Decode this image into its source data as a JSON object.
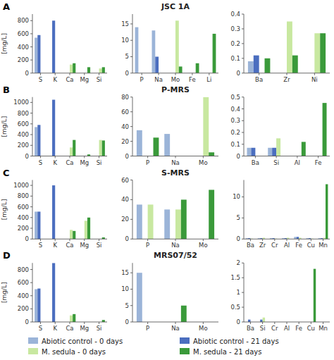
{
  "chart_data": [
    {
      "type": "bar",
      "annotations": [
        "A"
      ],
      "ylabel": "[mg/L]",
      "categories": [
        "S",
        "K",
        "Ca",
        "Mg",
        "Si"
      ],
      "ylim": [
        0,
        900
      ],
      "yticks": [
        0,
        200,
        400,
        600,
        800
      ],
      "grid": false,
      "legend": "bottom",
      "series": [
        {
          "name": "Abiotic control - 0 days",
          "color": "#9BB4D8",
          "values": [
            540,
            0,
            0,
            0,
            0
          ]
        },
        {
          "name": "Abiotic control - 21 days",
          "color": "#4B6EBF",
          "values": [
            580,
            800,
            0,
            0,
            0
          ]
        },
        {
          "name": "M. sedula - 0 days",
          "color": "#C8E8A0",
          "values": [
            0,
            0,
            130,
            0,
            70
          ]
        },
        {
          "name": "M. sedula - 21 days",
          "color": "#3A9A3A",
          "values": [
            0,
            0,
            150,
            90,
            90
          ]
        }
      ]
    },
    {
      "type": "bar",
      "title": "JSC 1A",
      "categories": [
        "P",
        "Na",
        "Mo",
        "Fe",
        "Li"
      ],
      "ylim": [
        0,
        18
      ],
      "yticks": [
        0,
        5,
        10,
        15
      ],
      "grid": false,
      "series": [
        {
          "color": "#9BB4D8",
          "values": [
            14,
            13,
            0,
            0,
            0
          ]
        },
        {
          "color": "#4B6EBF",
          "values": [
            0,
            5,
            0,
            0,
            0
          ]
        },
        {
          "color": "#C8E8A0",
          "values": [
            0,
            0,
            16,
            0,
            0
          ]
        },
        {
          "color": "#3A9A3A",
          "values": [
            0,
            0,
            2,
            3,
            12
          ]
        }
      ]
    },
    {
      "type": "bar",
      "categories": [
        "Ba",
        "Zr",
        "Ni"
      ],
      "ylim": [
        0,
        0.4
      ],
      "yticks": [
        0,
        0.1,
        0.2,
        0.3,
        0.4
      ],
      "grid": false,
      "series": [
        {
          "color": "#9BB4D8",
          "values": [
            0.08,
            0,
            0
          ]
        },
        {
          "color": "#4B6EBF",
          "values": [
            0.12,
            0,
            0
          ]
        },
        {
          "color": "#C8E8A0",
          "values": [
            0,
            0.35,
            0.27
          ]
        },
        {
          "color": "#3A9A3A",
          "values": [
            0.1,
            0.12,
            0.27
          ]
        }
      ]
    },
    {
      "type": "bar",
      "annotations": [
        "B"
      ],
      "ylabel": "[mg/L]",
      "categories": [
        "S",
        "K",
        "Ca",
        "Mg",
        "Si"
      ],
      "ylim": [
        0,
        1100
      ],
      "yticks": [
        0,
        200,
        400,
        600,
        800,
        1000
      ],
      "grid": false,
      "series": [
        {
          "color": "#9BB4D8",
          "values": [
            540,
            0,
            0,
            0,
            0
          ]
        },
        {
          "color": "#4B6EBF",
          "values": [
            580,
            1050,
            0,
            0,
            0
          ]
        },
        {
          "color": "#C8E8A0",
          "values": [
            0,
            0,
            160,
            0,
            300
          ]
        },
        {
          "color": "#3A9A3A",
          "values": [
            0,
            0,
            300,
            30,
            290
          ]
        }
      ]
    },
    {
      "type": "bar",
      "title": "P-MRS",
      "categories": [
        "P",
        "Na",
        "Mo"
      ],
      "ylim": [
        0,
        80
      ],
      "yticks": [
        0,
        20,
        40,
        60,
        80
      ],
      "grid": false,
      "series": [
        {
          "color": "#9BB4D8",
          "values": [
            35,
            30,
            0
          ]
        },
        {
          "color": "#4B6EBF",
          "values": [
            0,
            0,
            0
          ]
        },
        {
          "color": "#C8E8A0",
          "values": [
            0,
            0,
            80
          ]
        },
        {
          "color": "#3A9A3A",
          "values": [
            25,
            0,
            5
          ]
        }
      ]
    },
    {
      "type": "bar",
      "categories": [
        "Ba",
        "Si",
        "Al",
        "Fe"
      ],
      "ylim": [
        0,
        0.5
      ],
      "yticks": [
        0,
        0.1,
        0.2,
        0.3,
        0.4,
        0.5
      ],
      "grid": false,
      "series": [
        {
          "color": "#9BB4D8",
          "values": [
            0.07,
            0.07,
            0,
            0
          ]
        },
        {
          "color": "#4B6EBF",
          "values": [
            0.07,
            0.07,
            0,
            0
          ]
        },
        {
          "color": "#C8E8A0",
          "values": [
            0,
            0.15,
            0,
            0
          ]
        },
        {
          "color": "#3A9A3A",
          "values": [
            0,
            0,
            0.12,
            0.45
          ]
        }
      ]
    },
    {
      "type": "bar",
      "annotations": [
        "C"
      ],
      "ylabel": "[mg/L]",
      "categories": [
        "S",
        "K",
        "Ca",
        "Mg",
        "Si"
      ],
      "ylim": [
        0,
        1100
      ],
      "yticks": [
        0,
        200,
        400,
        600,
        800,
        1000
      ],
      "grid": false,
      "series": [
        {
          "color": "#9BB4D8",
          "values": [
            510,
            0,
            0,
            0,
            0
          ]
        },
        {
          "color": "#4B6EBF",
          "values": [
            510,
            1000,
            0,
            0,
            0
          ]
        },
        {
          "color": "#C8E8A0",
          "values": [
            0,
            0,
            170,
            340,
            0
          ]
        },
        {
          "color": "#3A9A3A",
          "values": [
            0,
            0,
            150,
            400,
            30
          ]
        }
      ]
    },
    {
      "type": "bar",
      "title": "S-MRS",
      "categories": [
        "P",
        "Na",
        "Mo"
      ],
      "ylim": [
        0,
        60
      ],
      "yticks": [
        0,
        20,
        40,
        60
      ],
      "grid": false,
      "series": [
        {
          "color": "#9BB4D8",
          "values": [
            35,
            30,
            0
          ]
        },
        {
          "color": "#4B6EBF",
          "values": [
            0,
            0,
            0
          ]
        },
        {
          "color": "#C8E8A0",
          "values": [
            35,
            30,
            0
          ]
        },
        {
          "color": "#3A9A3A",
          "values": [
            0,
            40,
            50
          ]
        }
      ]
    },
    {
      "type": "bar",
      "categories": [
        "Ba",
        "Zr",
        "Cr",
        "Al",
        "Fe",
        "Cu",
        "Mn"
      ],
      "ylim": [
        0,
        14
      ],
      "yticks": [
        0,
        5,
        10
      ],
      "grid": false,
      "series": [
        {
          "color": "#9BB4D8",
          "values": [
            0.2,
            0.2,
            0.2,
            0.2,
            0.5,
            0.2,
            0.2
          ]
        },
        {
          "color": "#4B6EBF",
          "values": [
            0.2,
            0.2,
            0.2,
            0.2,
            0.5,
            0.2,
            0.2
          ]
        },
        {
          "color": "#C8E8A0",
          "values": [
            0.1,
            0.3,
            0.1,
            0.3,
            0.3,
            0.1,
            0.3
          ]
        },
        {
          "color": "#3A9A3A",
          "values": [
            0,
            0,
            0,
            0,
            0,
            0,
            13
          ]
        }
      ]
    },
    {
      "type": "bar",
      "annotations": [
        "D"
      ],
      "ylabel": "[mg/L]",
      "categories": [
        "S",
        "K",
        "Ca",
        "Mg",
        "Si"
      ],
      "ylim": [
        0,
        900
      ],
      "yticks": [
        0,
        200,
        400,
        600,
        800
      ],
      "grid": false,
      "series": [
        {
          "color": "#9BB4D8",
          "values": [
            500,
            0,
            0,
            0,
            0
          ]
        },
        {
          "color": "#4B6EBF",
          "values": [
            510,
            900,
            0,
            0,
            0
          ]
        },
        {
          "color": "#C8E8A0",
          "values": [
            0,
            0,
            100,
            0,
            0
          ]
        },
        {
          "color": "#3A9A3A",
          "values": [
            0,
            0,
            120,
            0,
            30
          ]
        }
      ]
    },
    {
      "type": "bar",
      "title": "MRS07/52",
      "categories": [
        "P",
        "Na",
        "Mo"
      ],
      "ylim": [
        0,
        18
      ],
      "yticks": [
        0,
        5,
        10,
        15
      ],
      "grid": false,
      "series": [
        {
          "color": "#9BB4D8",
          "values": [
            15,
            0,
            0
          ]
        },
        {
          "color": "#4B6EBF",
          "values": [
            0,
            0,
            0
          ]
        },
        {
          "color": "#C8E8A0",
          "values": [
            0,
            0,
            0
          ]
        },
        {
          "color": "#3A9A3A",
          "values": [
            0,
            5,
            0
          ]
        }
      ]
    },
    {
      "type": "bar",
      "categories": [
        "Ba",
        "Si",
        "Cr",
        "Al",
        "Fe",
        "Cu",
        "Mn"
      ],
      "ylim": [
        0,
        2.0
      ],
      "yticks": [
        0,
        0.5,
        1,
        1.5,
        2
      ],
      "grid": false,
      "series": [
        {
          "color": "#9BB4D8",
          "values": [
            0,
            0,
            0,
            0,
            0,
            0,
            0
          ]
        },
        {
          "color": "#4B6EBF",
          "values": [
            0.08,
            0.08,
            0,
            0,
            0,
            0,
            0
          ]
        },
        {
          "color": "#C8E8A0",
          "values": [
            0,
            0.15,
            0,
            0,
            0,
            0,
            0
          ]
        },
        {
          "color": "#3A9A3A",
          "values": [
            0,
            0,
            0,
            0,
            0,
            1.8,
            0
          ]
        }
      ]
    }
  ]
}
